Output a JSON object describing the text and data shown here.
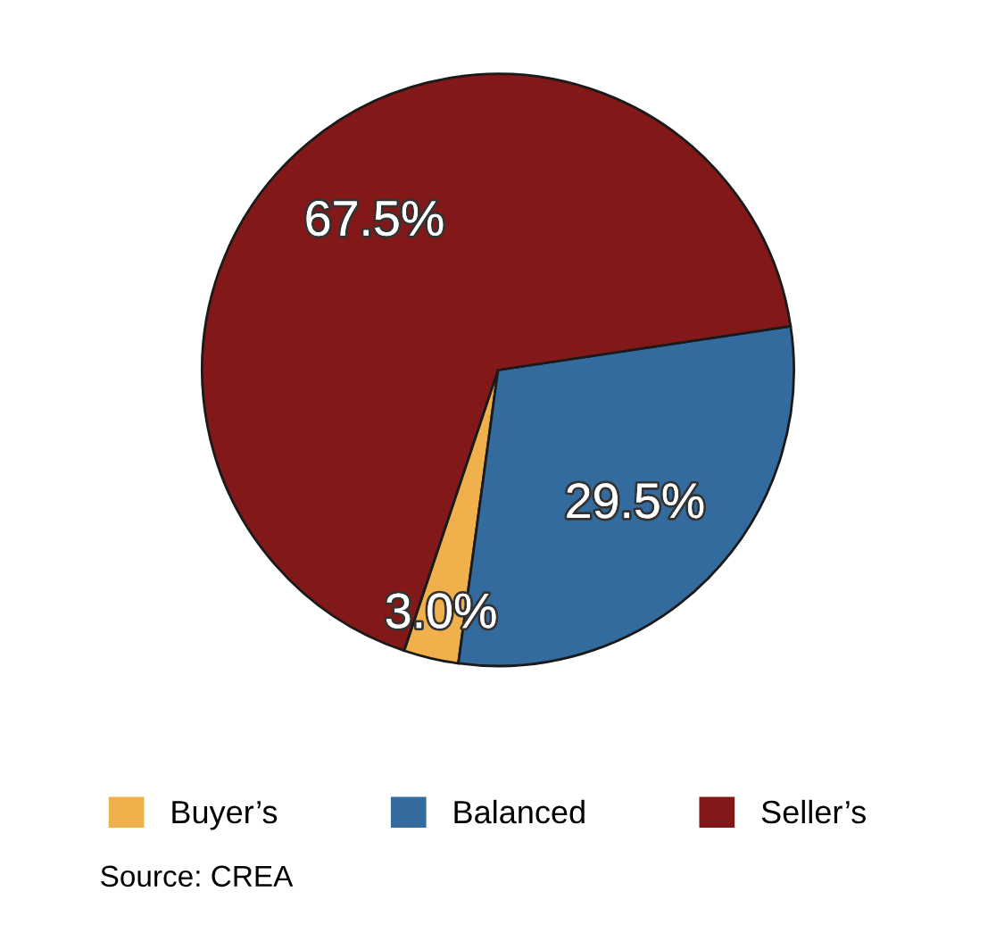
{
  "chart_data": {
    "type": "pie",
    "categories": [
      "Buyer’s",
      "Balanced",
      "Seller’s"
    ],
    "values": [
      3.0,
      29.5,
      67.5
    ],
    "colors": [
      "#f0b04c",
      "#336b9e",
      "#821818"
    ],
    "value_labels": [
      "3.0%",
      "29.5%",
      "67.5%"
    ],
    "legend": "bottom",
    "annotations": [
      "Source: CREA"
    ]
  }
}
